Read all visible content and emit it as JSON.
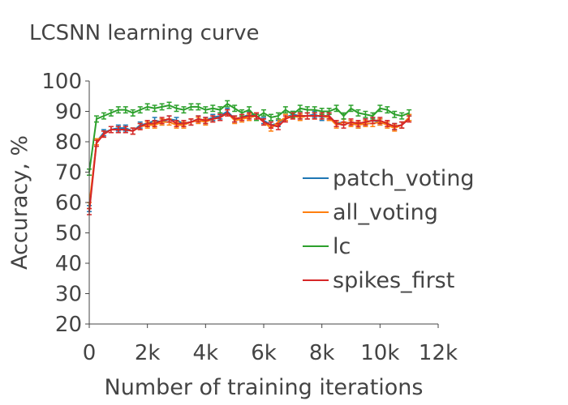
{
  "chart_data": {
    "type": "line",
    "title": "LCSNN learning curve",
    "xlabel": "Number of training iterations",
    "ylabel": "Accuracy, %",
    "xlim": [
      0,
      12000
    ],
    "ylim": [
      20,
      100
    ],
    "xticks": [
      0,
      2000,
      4000,
      6000,
      8000,
      10000,
      12000
    ],
    "xtick_labels": [
      "0",
      "2k",
      "4k",
      "6k",
      "8k",
      "10k",
      "12k"
    ],
    "yticks": [
      20,
      30,
      40,
      50,
      60,
      70,
      80,
      90,
      100
    ],
    "ytick_labels": [
      "20",
      "30",
      "40",
      "50",
      "60",
      "70",
      "80",
      "90",
      "100"
    ],
    "grid": false,
    "error_bars": true,
    "legend_position": "right",
    "x": [
      0,
      250,
      500,
      750,
      1000,
      1250,
      1500,
      1750,
      2000,
      2250,
      2500,
      2750,
      3000,
      3250,
      3500,
      3750,
      4000,
      4250,
      4500,
      4750,
      5000,
      5250,
      5500,
      5750,
      6000,
      6250,
      6500,
      6750,
      7000,
      7250,
      7500,
      7750,
      8000,
      8250,
      8500,
      8750,
      9000,
      9250,
      9500,
      9750,
      10000,
      10250,
      10500,
      10750,
      11000
    ],
    "series": [
      {
        "name": "patch_voting",
        "color": "#1f77b4",
        "values": [
          58,
          80,
          83,
          84,
          84.5,
          84.5,
          83.5,
          85.5,
          86,
          87,
          86.5,
          87.5,
          87,
          86,
          86.5,
          87.5,
          87,
          88,
          88.5,
          90,
          87.5,
          88,
          89,
          88.5,
          87,
          85.5,
          86,
          88,
          89,
          88.5,
          88.5,
          89,
          88,
          88.5,
          86,
          86.5,
          86,
          85.5,
          86.5,
          87,
          86.5,
          86,
          85,
          85.5,
          88
        ]
      },
      {
        "name": "all_voting",
        "color": "#ff7f0e",
        "values": [
          59,
          80,
          82.5,
          84,
          84,
          84,
          83.5,
          85,
          85.5,
          85.5,
          86.5,
          86.5,
          85.5,
          85.5,
          86.5,
          87,
          86.5,
          87.5,
          88,
          89.5,
          87,
          87.5,
          88,
          88.5,
          86.5,
          84.5,
          86.5,
          88,
          88.5,
          88,
          88.5,
          88.5,
          88.5,
          88,
          85.5,
          86.5,
          86,
          85.5,
          86,
          86,
          86.5,
          85.5,
          84.5,
          85.5,
          88
        ]
      },
      {
        "name": "lc",
        "color": "#2ca02c",
        "values": [
          70,
          87.5,
          88.5,
          89.5,
          90.5,
          90.5,
          89.5,
          90.5,
          91.5,
          91,
          91.5,
          92,
          91,
          90.5,
          91.5,
          91.5,
          90.5,
          91,
          90.5,
          92.5,
          91,
          89.5,
          90.5,
          88,
          89.5,
          88,
          88.5,
          90.5,
          89,
          91,
          90.5,
          90.5,
          90,
          90,
          91,
          88.5,
          91,
          89.5,
          89,
          88.5,
          91,
          90.5,
          89,
          88.5,
          89.5
        ]
      },
      {
        "name": "spikes_first",
        "color": "#d62728",
        "values": [
          57,
          79.5,
          82.5,
          84,
          84,
          84,
          83.5,
          85,
          86,
          86,
          87,
          87.5,
          86,
          86,
          86.5,
          87.5,
          87,
          87.5,
          88,
          89.5,
          87.5,
          88,
          88.5,
          88.5,
          86.5,
          85.5,
          85,
          87.5,
          88.5,
          88.5,
          88.5,
          88.5,
          88.5,
          88.5,
          86,
          85.5,
          86.5,
          86,
          86.5,
          87,
          87,
          86,
          85,
          85.5,
          87.5
        ]
      }
    ]
  }
}
